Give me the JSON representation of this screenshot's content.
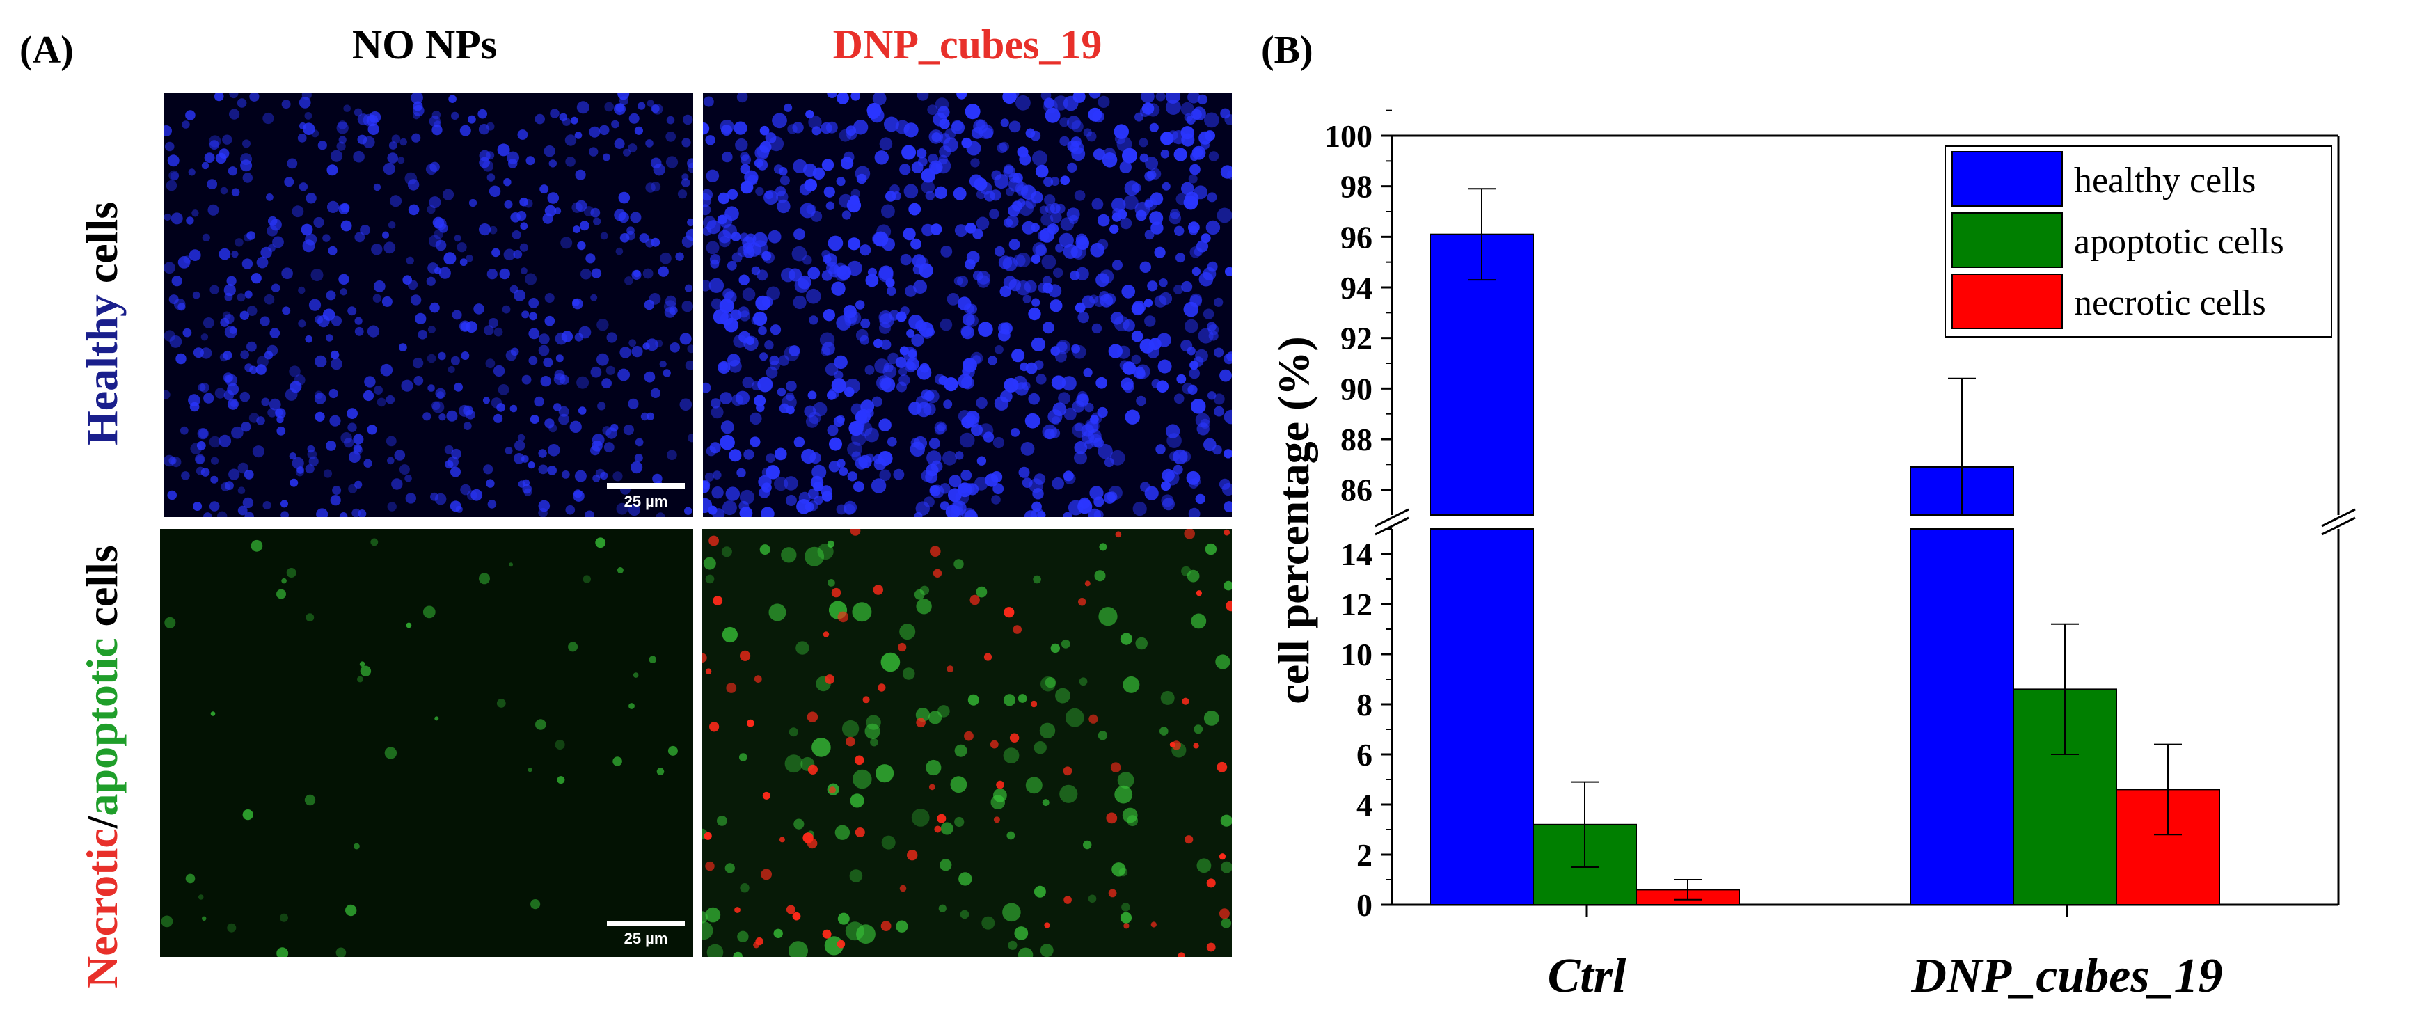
{
  "panelA": {
    "label": "(A)",
    "col_titles": [
      "NO NPs",
      "DNP_cubes_19"
    ],
    "col_title_colors": [
      "#000000",
      "#e8302a"
    ],
    "row_label_top": [
      {
        "text": "Healthy",
        "color": "#1a1f8c"
      },
      {
        "text": " cells",
        "color": "#000000"
      }
    ],
    "row_label_bottom": [
      {
        "text": "Necrotic",
        "color": "#e8302a"
      },
      {
        "text": "/",
        "color": "#000000"
      },
      {
        "text": "apoptotic",
        "color": "#1f9e2a"
      },
      {
        "text": " cells",
        "color": "#000000"
      }
    ],
    "scale_bar_text": "25 µm",
    "stain_colors": {
      "nuclei": "#2a36ff",
      "apoptotic": "#3ccf3c",
      "necrotic": "#ff2a1a"
    }
  },
  "panelB": {
    "label": "(B)"
  },
  "chart_data": {
    "type": "bar",
    "categories": [
      "Ctrl",
      "DNP_cubes_19"
    ],
    "series": [
      {
        "name": "healthy cells",
        "color": "#0000ff",
        "values": [
          96.1,
          86.9
        ],
        "errors": [
          1.8,
          3.5
        ]
      },
      {
        "name": "apoptotic cells",
        "color": "#007f00",
        "values": [
          3.2,
          8.6
        ],
        "errors": [
          1.7,
          2.6
        ]
      },
      {
        "name": "necrotic cells",
        "color": "#ff0000",
        "values": [
          0.6,
          4.6
        ],
        "errors": [
          0.4,
          1.8
        ]
      }
    ],
    "ylabel": "cell percentage (%)",
    "y_break": {
      "lower_range": [
        0,
        15
      ],
      "upper_range": [
        85,
        100
      ]
    },
    "lower_ticks": [
      0,
      2,
      4,
      6,
      8,
      10,
      12,
      14
    ],
    "upper_ticks": [
      86,
      88,
      90,
      92,
      94,
      96,
      98,
      100
    ],
    "legend_position": "top-right",
    "grid": false
  }
}
